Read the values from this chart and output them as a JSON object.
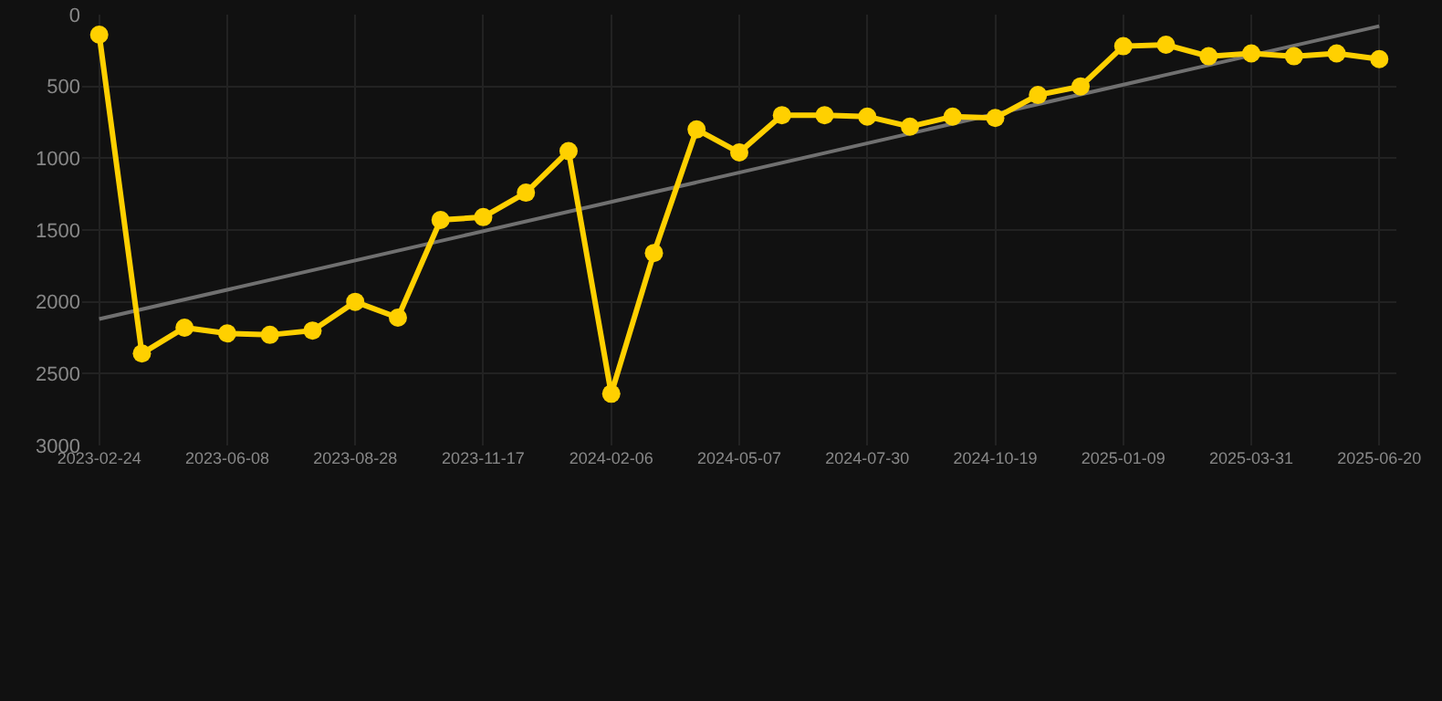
{
  "chart_data": {
    "type": "line",
    "categories": [
      "2023-02-24",
      null,
      null,
      "2023-06-08",
      null,
      null,
      "2023-08-28",
      null,
      null,
      "2023-11-17",
      null,
      null,
      "2024-02-06",
      null,
      null,
      "2024-05-07",
      null,
      null,
      "2024-07-30",
      null,
      null,
      "2024-10-19",
      null,
      null,
      "2025-01-09",
      null,
      null,
      "2025-03-31",
      null,
      null,
      "2025-06-20"
    ],
    "series": [
      {
        "color": "#ffd000",
        "values": [
          140,
          2360,
          2180,
          2220,
          2230,
          2200,
          2000,
          2110,
          1430,
          1410,
          1240,
          950,
          2640,
          1660,
          800,
          960,
          700,
          700,
          710,
          780,
          710,
          720,
          560,
          500,
          220,
          210,
          290,
          270,
          290,
          270,
          310
        ]
      },
      {
        "type": "line",
        "color": "#707070",
        "values": [
          2120,
          null,
          null,
          null,
          null,
          null,
          null,
          null,
          null,
          null,
          null,
          null,
          null,
          null,
          null,
          null,
          null,
          null,
          null,
          null,
          null,
          null,
          null,
          null,
          null,
          null,
          null,
          null,
          null,
          null,
          80
        ],
        "marker": "none"
      }
    ],
    "ylim": [
      3000,
      0
    ],
    "yticks": [
      0,
      500,
      1000,
      1500,
      2000,
      2500,
      3000
    ],
    "grid": true,
    "marker": "circle",
    "line_style": "solid"
  }
}
